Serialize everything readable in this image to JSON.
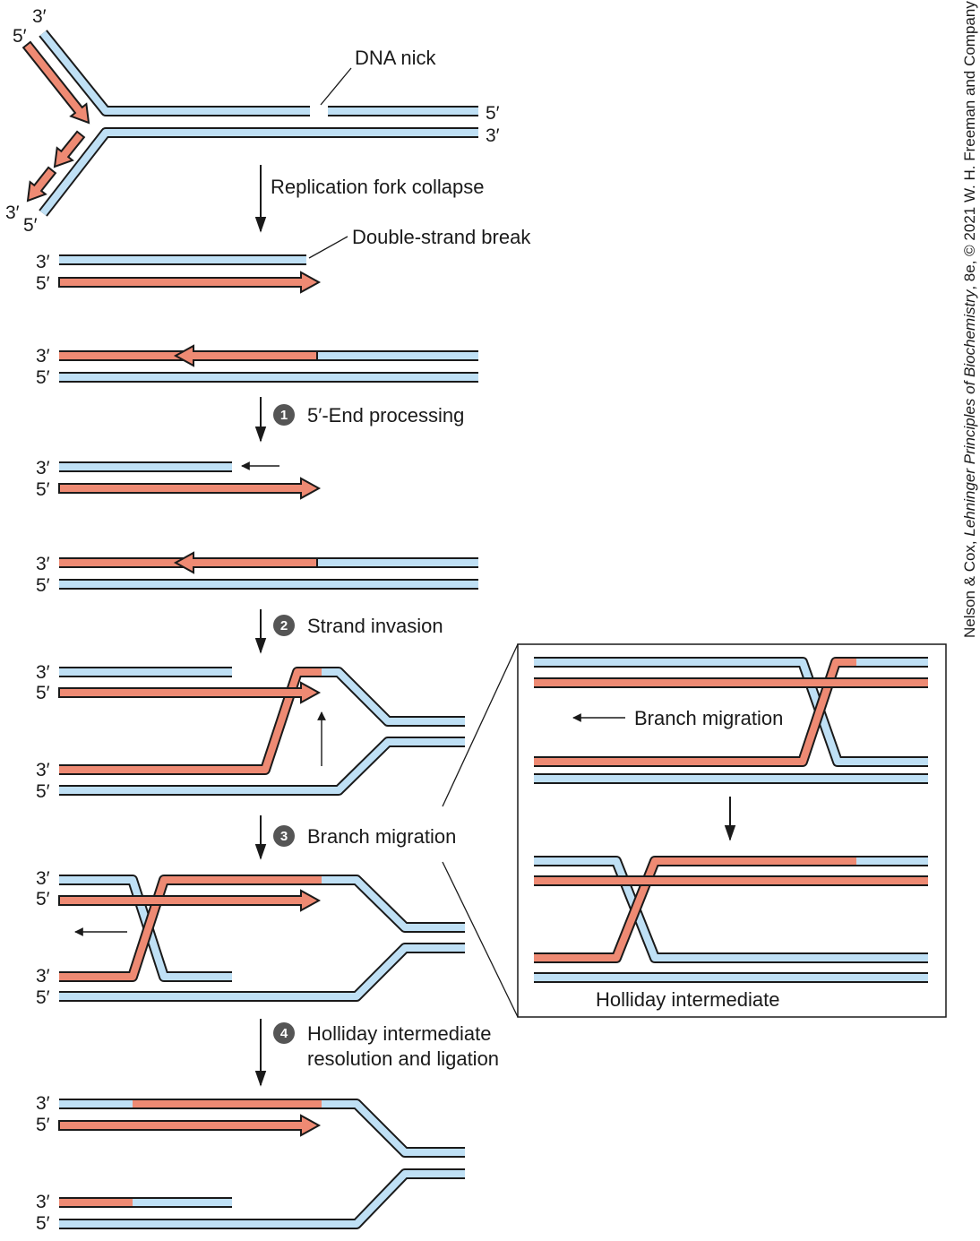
{
  "colors": {
    "blue_strand": "#bfe0f5",
    "red_strand": "#ee8a73",
    "outline": "#1a1a1a",
    "step_badge": "#555555"
  },
  "ends": {
    "three_prime": "3′",
    "five_prime": "5′"
  },
  "labels": {
    "dna_nick": "DNA nick",
    "fork_collapse": "Replication fork collapse",
    "double_strand_break": "Double-strand break",
    "inset_branch_migration": "Branch migration",
    "holliday_intermediate": "Holliday intermediate"
  },
  "steps": [
    {
      "number": "1",
      "lines": [
        "5′-End processing"
      ]
    },
    {
      "number": "2",
      "lines": [
        "Strand invasion"
      ]
    },
    {
      "number": "3",
      "lines": [
        "Branch migration"
      ]
    },
    {
      "number": "4",
      "lines": [
        "Holliday intermediate",
        "resolution and ligation"
      ]
    }
  ],
  "credit": {
    "pre": "Nelson & Cox, ",
    "title": "Lehninger Principles of Biochemistry",
    "post": ", 8e, © 2021 W. H. Freeman and Company"
  }
}
